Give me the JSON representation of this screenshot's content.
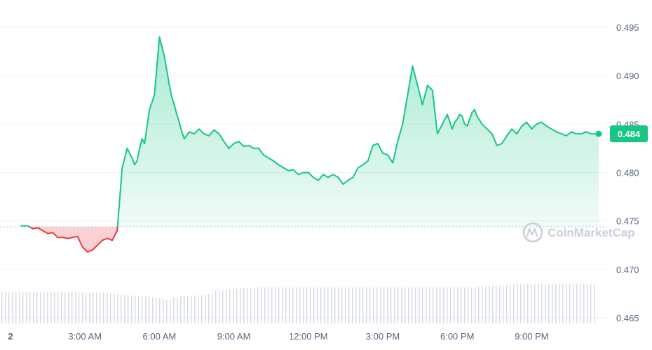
{
  "chart_data": {
    "type": "line",
    "x_ticks": [
      "2",
      "3:00 AM",
      "6:00 AM",
      "9:00 AM",
      "12:00 PM",
      "3:00 PM",
      "6:00 PM",
      "9:00 PM"
    ],
    "y_ticks": [
      0.465,
      0.47,
      0.475,
      0.48,
      0.485,
      0.49,
      0.495
    ],
    "ylim": [
      0.4645,
      0.4975
    ],
    "xlim_hours": [
      0.4,
      24.8
    ],
    "baseline": 0.4744,
    "last_value": 0.484,
    "last_value_label": "0.484",
    "watermark": "CoinMarketCap",
    "grid": true,
    "colors": {
      "up": "#16c784",
      "down": "#ea3943",
      "badge": "#16c784"
    },
    "x_hours": [
      0.4,
      0.7,
      0.9,
      1.1,
      1.3,
      1.5,
      1.7,
      1.9,
      2.1,
      2.3,
      2.5,
      2.7,
      2.9,
      3.1,
      3.3,
      3.5,
      3.7,
      3.9,
      4.1,
      4.3,
      4.5,
      4.7,
      4.9,
      5.0,
      5.1,
      5.2,
      5.3,
      5.4,
      5.6,
      5.8,
      6.0,
      6.2,
      6.4,
      6.5,
      6.6,
      6.7,
      6.8,
      6.9,
      7.0,
      7.2,
      7.4,
      7.6,
      7.8,
      8.0,
      8.2,
      8.4,
      8.6,
      8.8,
      9.0,
      9.2,
      9.4,
      9.6,
      9.8,
      10.0,
      10.2,
      10.4,
      10.6,
      10.8,
      11.0,
      11.2,
      11.4,
      11.6,
      11.8,
      12.0,
      12.2,
      12.4,
      12.6,
      12.8,
      13.0,
      13.2,
      13.4,
      13.6,
      13.8,
      14.0,
      14.2,
      14.4,
      14.6,
      14.8,
      15.0,
      15.2,
      15.4,
      15.6,
      15.8,
      16.0,
      16.2,
      16.4,
      16.6,
      16.8,
      17.0,
      17.2,
      17.4,
      17.6,
      17.8,
      17.9,
      18.0,
      18.1,
      18.2,
      18.3,
      18.4,
      18.5,
      18.6,
      18.7,
      18.8,
      19.0,
      19.2,
      19.4,
      19.6,
      19.8,
      20.0,
      20.2,
      20.4,
      20.6,
      20.8,
      21.0,
      21.2,
      21.4,
      21.6,
      21.8,
      22.0,
      22.2,
      22.4,
      22.6,
      22.8,
      23.0,
      23.2,
      23.4,
      23.6,
      23.7
    ],
    "values": [
      0.4745,
      0.4745,
      0.4742,
      0.4743,
      0.474,
      0.4737,
      0.4738,
      0.4733,
      0.4733,
      0.4732,
      0.4733,
      0.4734,
      0.4723,
      0.4718,
      0.472,
      0.4725,
      0.473,
      0.4732,
      0.473,
      0.474,
      0.4805,
      0.4825,
      0.4815,
      0.4808,
      0.4812,
      0.4825,
      0.4835,
      0.483,
      0.4865,
      0.488,
      0.494,
      0.492,
      0.489,
      0.4878,
      0.487,
      0.486,
      0.4852,
      0.4842,
      0.4835,
      0.4842,
      0.484,
      0.4845,
      0.484,
      0.4838,
      0.4844,
      0.484,
      0.4832,
      0.4825,
      0.483,
      0.4832,
      0.4827,
      0.4828,
      0.4825,
      0.4825,
      0.4818,
      0.4815,
      0.4812,
      0.4808,
      0.4805,
      0.4802,
      0.4803,
      0.4798,
      0.48,
      0.48,
      0.4795,
      0.4792,
      0.4798,
      0.4795,
      0.4798,
      0.4795,
      0.4788,
      0.4792,
      0.4795,
      0.4805,
      0.4808,
      0.4812,
      0.4828,
      0.483,
      0.482,
      0.4818,
      0.481,
      0.4832,
      0.485,
      0.488,
      0.491,
      0.489,
      0.487,
      0.489,
      0.4885,
      0.484,
      0.485,
      0.486,
      0.4845,
      0.4852,
      0.4855,
      0.486,
      0.4858,
      0.485,
      0.4848,
      0.4855,
      0.4862,
      0.4865,
      0.4858,
      0.485,
      0.4845,
      0.484,
      0.4828,
      0.483,
      0.4838,
      0.4845,
      0.484,
      0.4848,
      0.4852,
      0.4845,
      0.485,
      0.4852,
      0.4848,
      0.4845,
      0.4842,
      0.484,
      0.4838,
      0.4842,
      0.484,
      0.484,
      0.4842,
      0.484,
      0.484,
      0.484
    ],
    "volume_relative": [
      0.48,
      0.48,
      0.48,
      0.48,
      0.48,
      0.48,
      0.48,
      0.48,
      0.48,
      0.47,
      0.47,
      0.47,
      0.46,
      0.45,
      0.44,
      0.42,
      0.42,
      0.4,
      0.38,
      0.36,
      0.4,
      0.42,
      0.42,
      0.43,
      0.45,
      0.5,
      0.52,
      0.53,
      0.54,
      0.54,
      0.55,
      0.55,
      0.55,
      0.55,
      0.55,
      0.55,
      0.55,
      0.55,
      0.55,
      0.55,
      0.55,
      0.55,
      0.55,
      0.55,
      0.55,
      0.55,
      0.55,
      0.55,
      0.55,
      0.55,
      0.55,
      0.55,
      0.55,
      0.55,
      0.55,
      0.55,
      0.56,
      0.57,
      0.58,
      0.59,
      0.6,
      0.6,
      0.6,
      0.6,
      0.6,
      0.6,
      0.6,
      0.6,
      0.6,
      0.6
    ]
  }
}
